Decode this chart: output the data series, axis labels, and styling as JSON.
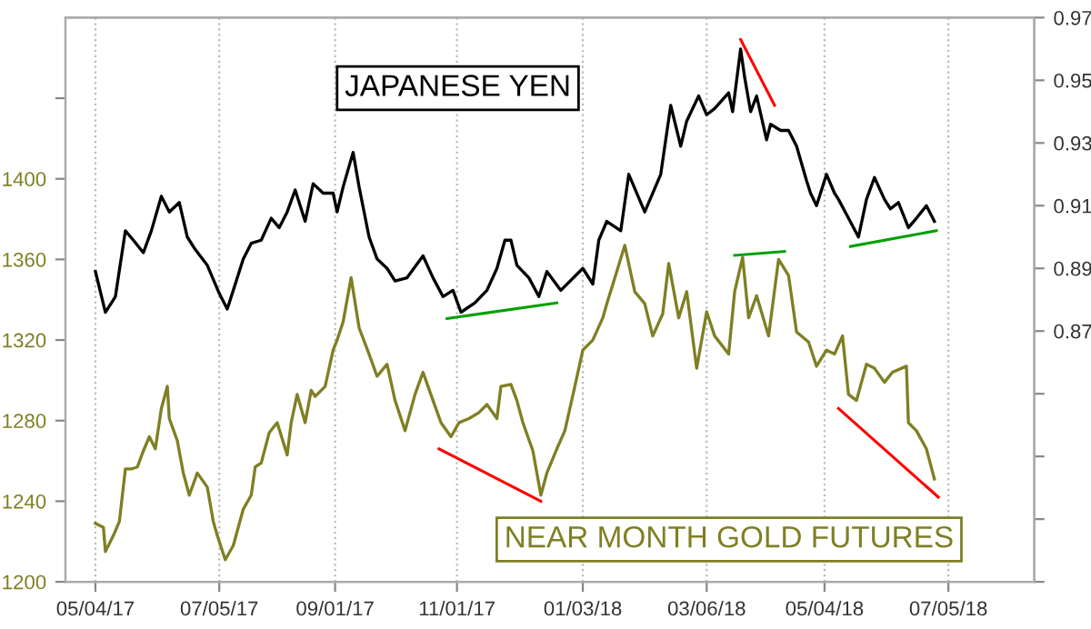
{
  "chart_data": {
    "type": "line",
    "ylabel": null,
    "xlim": [
      "2017-04-19",
      "2018-08-17"
    ],
    "xticks": [
      {
        "value": "2017-05-04",
        "label": "05/04/17"
      },
      {
        "value": "2017-07-05",
        "label": "07/05/17"
      },
      {
        "value": "2017-09-01",
        "label": "09/01/17"
      },
      {
        "value": "2017-11-01",
        "label": "11/01/17"
      },
      {
        "value": "2018-01-03",
        "label": "01/03/18"
      },
      {
        "value": "2018-03-06",
        "label": "03/06/18"
      },
      {
        "value": "2018-05-04",
        "label": "05/04/18"
      },
      {
        "value": "2018-07-05",
        "label": "07/05/18"
      }
    ],
    "ylim": [
      1200,
      1480
    ],
    "yticks": [
      1200,
      1240,
      1280,
      1320,
      1360,
      1400,
      {
        "value": 1440,
        "label": null
      }
    ],
    "y2lim": [
      0.79,
      0.97
    ],
    "y2ticks": [
      {
        "value": 0.79,
        "label": null
      },
      {
        "value": 0.81,
        "label": null
      },
      {
        "value": 0.83,
        "label": null
      },
      {
        "value": 0.85,
        "label": null
      },
      0.87,
      0.89,
      0.91,
      0.93,
      0.95,
      0.97
    ],
    "grid": "x",
    "line_style": "solid",
    "marker": "none",
    "series": [
      {
        "name": "JAPANESE YEN",
        "axis": "y2",
        "color": "#000000",
        "x": [
          "2017-05-04",
          "2017-05-09",
          "2017-05-14",
          "2017-05-19",
          "2017-05-23",
          "2017-05-28",
          "2017-06-01",
          "2017-06-06",
          "2017-06-10",
          "2017-06-15",
          "2017-06-19",
          "2017-06-23",
          "2017-06-29",
          "2017-07-05",
          "2017-07-09",
          "2017-07-12",
          "2017-07-17",
          "2017-07-21",
          "2017-07-26",
          "2017-07-31",
          "2017-08-04",
          "2017-08-08",
          "2017-08-12",
          "2017-08-17",
          "2017-08-21",
          "2017-08-26",
          "2017-08-31",
          "2017-09-02",
          "2017-09-05",
          "2017-09-10",
          "2017-09-13",
          "2017-09-18",
          "2017-09-22",
          "2017-09-27",
          "2017-10-01",
          "2017-10-07",
          "2017-10-15",
          "2017-10-20",
          "2017-10-25",
          "2017-10-30",
          "2017-11-03",
          "2017-11-10",
          "2017-11-16",
          "2017-11-21",
          "2017-11-25",
          "2017-11-28",
          "2017-12-01",
          "2017-12-07",
          "2017-12-12",
          "2017-12-16",
          "2017-12-23",
          "2018-01-03",
          "2018-01-08",
          "2018-01-11",
          "2018-01-15",
          "2018-01-22",
          "2018-01-26",
          "2018-02-03",
          "2018-02-11",
          "2018-02-16",
          "2018-02-21",
          "2018-02-24",
          "2018-03-02",
          "2018-03-06",
          "2018-03-10",
          "2018-03-17",
          "2018-03-19",
          "2018-03-23",
          "2018-03-25",
          "2018-03-28",
          "2018-03-31",
          "2018-04-05",
          "2018-04-07",
          "2018-04-12",
          "2018-04-16",
          "2018-04-20",
          "2018-04-25",
          "2018-04-27",
          "2018-04-30",
          "2018-05-05",
          "2018-05-09",
          "2018-05-11",
          "2018-05-16",
          "2018-05-21",
          "2018-05-25",
          "2018-05-29",
          "2018-06-03",
          "2018-06-06",
          "2018-06-10",
          "2018-06-15",
          "2018-06-19",
          "2018-06-24",
          "2018-06-28"
        ],
        "values": [
          0.889,
          0.876,
          0.881,
          0.902,
          0.899,
          0.895,
          0.902,
          0.913,
          0.908,
          0.911,
          0.9,
          0.896,
          0.891,
          0.882,
          0.877,
          0.883,
          0.893,
          0.898,
          0.899,
          0.906,
          0.903,
          0.908,
          0.915,
          0.905,
          0.917,
          0.914,
          0.914,
          0.908,
          0.916,
          0.927,
          0.916,
          0.9,
          0.893,
          0.89,
          0.886,
          0.887,
          0.894,
          0.887,
          0.881,
          0.883,
          0.876,
          0.879,
          0.883,
          0.89,
          0.899,
          0.899,
          0.891,
          0.887,
          0.881,
          0.889,
          0.883,
          0.89,
          0.885,
          0.899,
          0.905,
          0.902,
          0.92,
          0.908,
          0.92,
          0.942,
          0.929,
          0.937,
          0.945,
          0.939,
          0.941,
          0.946,
          0.94,
          0.96,
          0.951,
          0.94,
          0.945,
          0.931,
          0.936,
          0.934,
          0.934,
          0.929,
          0.918,
          0.914,
          0.91,
          0.92,
          0.914,
          0.912,
          0.906,
          0.9,
          0.912,
          0.919,
          0.912,
          0.909,
          0.911,
          0.903,
          0.906,
          0.91,
          0.905
        ]
      },
      {
        "name": "NEAR MONTH GOLD FUTURES",
        "axis": "y",
        "color": "#7f7f24",
        "x": [
          "2017-05-04",
          "2017-05-08",
          "2017-05-09",
          "2017-05-13",
          "2017-05-16",
          "2017-05-19",
          "2017-05-22",
          "2017-05-25",
          "2017-05-28",
          "2017-05-31",
          "2017-06-03",
          "2017-06-06",
          "2017-06-09",
          "2017-06-10",
          "2017-06-14",
          "2017-06-17",
          "2017-06-20",
          "2017-06-24",
          "2017-06-29",
          "2017-07-02",
          "2017-07-04",
          "2017-07-08",
          "2017-07-12",
          "2017-07-17",
          "2017-07-21",
          "2017-07-23",
          "2017-07-26",
          "2017-07-30",
          "2017-08-03",
          "2017-08-08",
          "2017-08-10",
          "2017-08-13",
          "2017-08-17",
          "2017-08-20",
          "2017-08-22",
          "2017-08-27",
          "2017-08-31",
          "2017-09-02",
          "2017-09-05",
          "2017-09-09",
          "2017-09-13",
          "2017-09-18",
          "2017-09-22",
          "2017-09-27",
          "2017-10-01",
          "2017-10-06",
          "2017-10-11",
          "2017-10-15",
          "2017-10-20",
          "2017-10-24",
          "2017-10-29",
          "2017-11-02",
          "2017-11-07",
          "2017-11-12",
          "2017-11-16",
          "2017-11-21",
          "2017-11-23",
          "2017-11-28",
          "2017-12-01",
          "2017-12-04",
          "2017-12-09",
          "2017-12-13",
          "2017-12-16",
          "2017-12-21",
          "2017-12-25",
          "2017-12-30",
          "2018-01-03",
          "2018-01-08",
          "2018-01-13",
          "2018-01-15",
          "2018-01-20",
          "2018-01-24",
          "2018-01-29",
          "2018-02-03",
          "2018-02-07",
          "2018-02-12",
          "2018-02-15",
          "2018-02-20",
          "2018-02-24",
          "2018-03-01",
          "2018-03-06",
          "2018-03-10",
          "2018-03-17",
          "2018-03-20",
          "2018-03-24",
          "2018-03-27",
          "2018-03-31",
          "2018-04-06",
          "2018-04-11",
          "2018-04-16",
          "2018-04-20",
          "2018-04-26",
          "2018-04-30",
          "2018-05-05",
          "2018-05-09",
          "2018-05-13",
          "2018-05-16",
          "2018-05-20",
          "2018-05-25",
          "2018-05-29",
          "2018-06-03",
          "2018-06-07",
          "2018-06-14",
          "2018-06-15",
          "2018-06-19",
          "2018-06-24",
          "2018-06-28"
        ],
        "values": [
          1229,
          1227,
          1215,
          1223,
          1230,
          1256,
          1256,
          1257,
          1265,
          1272,
          1266,
          1286,
          1297,
          1281,
          1270,
          1254,
          1243,
          1254,
          1247,
          1230,
          1223,
          1211,
          1218,
          1236,
          1243,
          1257,
          1259,
          1274,
          1279,
          1263,
          1279,
          1293,
          1279,
          1295,
          1292,
          1297,
          1315,
          1320,
          1329,
          1351,
          1326,
          1313,
          1302,
          1308,
          1290,
          1275,
          1293,
          1304,
          1290,
          1279,
          1272,
          1279,
          1281,
          1284,
          1288,
          1281,
          1297,
          1298,
          1290,
          1279,
          1265,
          1243,
          1254,
          1266,
          1275,
          1297,
          1315,
          1320,
          1331,
          1338,
          1354,
          1367,
          1344,
          1338,
          1322,
          1333,
          1358,
          1331,
          1344,
          1306,
          1334,
          1322,
          1313,
          1344,
          1361,
          1331,
          1342,
          1322,
          1360,
          1352,
          1324,
          1319,
          1307,
          1315,
          1313,
          1322,
          1293,
          1290,
          1308,
          1306,
          1299,
          1304,
          1307,
          1279,
          1275,
          1266,
          1251
        ]
      },
      {
        "axis": "y2",
        "color": "#00a000",
        "x": [
          "2017-10-27",
          "2017-12-21"
        ],
        "values": [
          0.874,
          0.879
        ]
      },
      {
        "axis": "y2",
        "color": "#ff0000",
        "x": [
          "2018-03-23",
          "2018-04-09"
        ],
        "values": [
          0.963,
          0.942
        ]
      },
      {
        "axis": "y",
        "color": "#00a000",
        "x": [
          "2018-03-20",
          "2018-04-14"
        ],
        "values": [
          1362,
          1364
        ]
      },
      {
        "axis": "y2",
        "color": "#00a000",
        "x": [
          "2018-05-17",
          "2018-06-29"
        ],
        "values": [
          0.897,
          0.902
        ]
      },
      {
        "axis": "y",
        "color": "#ff0000",
        "x": [
          "2017-10-23",
          "2017-12-13"
        ],
        "values": [
          1266,
          1240
        ]
      },
      {
        "axis": "y",
        "color": "#ff0000",
        "x": [
          "2018-05-11",
          "2018-06-30"
        ],
        "values": [
          1286,
          1242
        ]
      }
    ]
  }
}
